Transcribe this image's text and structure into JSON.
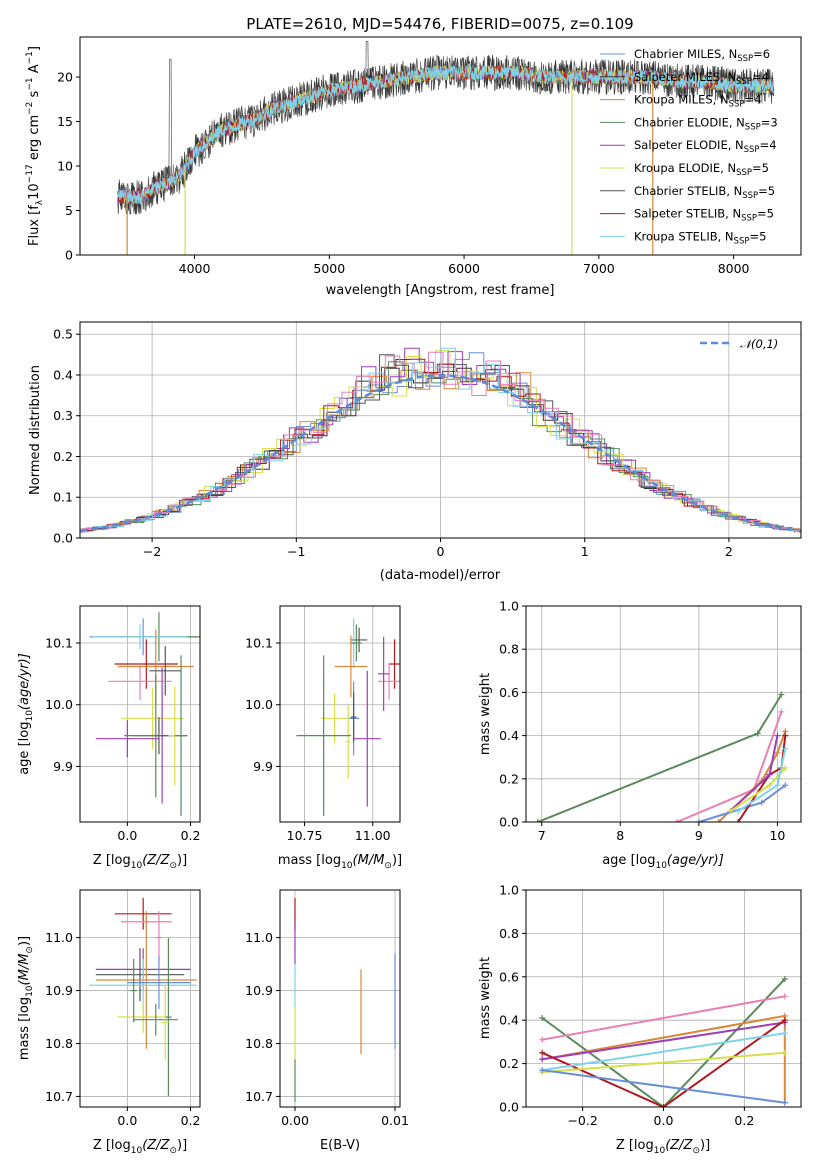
{
  "chart_data": [
    {
      "id": "spectrum",
      "type": "line",
      "title": "PLATE=2610, MJD=54476, FIBERID=0075, z=0.109",
      "xlabel": "wavelength [Angstrom, rest frame]",
      "ylabel_parts": [
        "Flux [f",
        "λ",
        "10",
        "−17",
        " erg cm",
        "−2",
        " s",
        "−1",
        " A",
        "−1",
        "]"
      ],
      "xlim": [
        3150,
        8500
      ],
      "ylim": [
        0,
        24.5
      ],
      "xticks": [
        4000,
        5000,
        6000,
        7000,
        8000
      ],
      "yticks": [
        0,
        5,
        10,
        15,
        20
      ],
      "grid": false,
      "legend_position": "top-right",
      "series": [
        {
          "name": "Chabrier MILES, N_SSP=6",
          "color": "#6a8fd8"
        },
        {
          "name": "Salpeter MILES, N_SSP=4",
          "color": "#333333"
        },
        {
          "name": "Kroupa MILES, N_SSP=4",
          "color": "#d9883a"
        },
        {
          "name": "Chabrier ELODIE, N_SSP=3",
          "color": "#5a8a5a"
        },
        {
          "name": "Salpeter ELODIE, N_SSP=4",
          "color": "#9c3fb5"
        },
        {
          "name": "Kroupa ELODIE, N_SSP=5",
          "color": "#d4e04a"
        },
        {
          "name": "Chabrier STELIB, N_SSP=5",
          "color": "#555555"
        },
        {
          "name": "Salpeter STELIB, N_SSP=5",
          "color": "#b0191e"
        },
        {
          "name": "Kroupa STELIB, N_SSP=5",
          "color": "#7fd3e8"
        }
      ],
      "legend_labels": [
        {
          "pre": "Chabrier MILES, N",
          "sub": "SSP",
          "post": "=6"
        },
        {
          "pre": "Salpeter MILES, N",
          "sub": "SSP",
          "post": "=4"
        },
        {
          "pre": "Kroupa MILES, N",
          "sub": "SSP",
          "post": "=4"
        },
        {
          "pre": "Chabrier ELODIE, N",
          "sub": "SSP",
          "post": "=3"
        },
        {
          "pre": "Salpeter ELODIE, N",
          "sub": "SSP",
          "post": "=4"
        },
        {
          "pre": "Kroupa ELODIE, N",
          "sub": "SSP",
          "post": "=5"
        },
        {
          "pre": "Chabrier STELIB, N",
          "sub": "SSP",
          "post": "=5"
        },
        {
          "pre": "Salpeter STELIB, N",
          "sub": "SSP",
          "post": "=5"
        },
        {
          "pre": "Kroupa STELIB, N",
          "sub": "SSP",
          "post": "=5"
        }
      ],
      "continuum": [
        [
          3430,
          6.5
        ],
        [
          3600,
          6.5
        ],
        [
          3700,
          7.5
        ],
        [
          3800,
          8
        ],
        [
          3900,
          9
        ],
        [
          4000,
          11.5
        ],
        [
          4200,
          14
        ],
        [
          4400,
          15
        ],
        [
          4600,
          16.5
        ],
        [
          4800,
          17.5
        ],
        [
          5000,
          18.5
        ],
        [
          5200,
          19
        ],
        [
          5400,
          19.5
        ],
        [
          5600,
          20
        ],
        [
          5800,
          20.5
        ],
        [
          6000,
          20.5
        ],
        [
          6200,
          20.5
        ],
        [
          6400,
          20.5
        ],
        [
          6600,
          20
        ],
        [
          6800,
          20
        ],
        [
          7000,
          20
        ],
        [
          7200,
          20
        ],
        [
          7400,
          20
        ],
        [
          7600,
          19.5
        ],
        [
          7800,
          19.5
        ],
        [
          8000,
          19
        ],
        [
          8200,
          19
        ],
        [
          8300,
          19
        ]
      ]
    },
    {
      "id": "residuals",
      "type": "line",
      "xlabel": "(data-model)/error",
      "ylabel": "Normed distribution",
      "xlim": [
        -2.5,
        2.5
      ],
      "ylim": [
        0,
        0.53
      ],
      "xticks": [
        -2,
        -1,
        0,
        1,
        2
      ],
      "yticks": [
        0.0,
        0.1,
        0.2,
        0.3,
        0.4,
        0.5
      ],
      "grid": true,
      "legend_position": "top-right",
      "legend_label": "𝒩(0,1)",
      "gaussian": {
        "mean": 0.0,
        "sigma": 1.0,
        "color": "#5b8bd8"
      }
    },
    {
      "id": "age-vs-Z",
      "type": "scatter",
      "xlabel_parts": [
        "Z [log",
        "10",
        "(Z/Z",
        "⊙",
        ")]"
      ],
      "ylabel_parts": [
        "age  [log",
        "10",
        "(age/yr)]"
      ],
      "xlim": [
        -0.15,
        0.23
      ],
      "ylim": [
        9.81,
        10.16
      ],
      "xticks": [
        0.0,
        0.2
      ],
      "yticks": [
        9.9,
        10.0,
        10.1
      ],
      "grid": true,
      "points": [
        {
          "color": "#6a8fd8",
          "x": 0.05,
          "y": 10.11,
          "xerr": 0.17,
          "yerr": 0.03
        },
        {
          "color": "#5a8a5a",
          "x": 0.1,
          "y": 10.11,
          "xerr": 0.13,
          "yerr": 0.04
        },
        {
          "color": "#7fd3e8",
          "x": 0.04,
          "y": 10.11,
          "xerr": 0.15,
          "yerr": 0.02
        },
        {
          "color": "#b0191e",
          "x": 0.06,
          "y": 10.066,
          "xerr": 0.1,
          "yerr": 0.04
        },
        {
          "color": "#d9883a",
          "x": 0.09,
          "y": 10.062,
          "xerr": 0.12,
          "yerr": 0.06
        },
        {
          "color": "#555555",
          "x": 0.12,
          "y": 10.055,
          "xerr": 0.05,
          "yerr": 0.04
        },
        {
          "color": "#e87fb5",
          "x": 0.04,
          "y": 10.038,
          "xerr": 0.1,
          "yerr": 0.03
        },
        {
          "color": "#d4e04a",
          "x": 0.08,
          "y": 9.978,
          "xerr": 0.1,
          "yerr": 0.05
        },
        {
          "color": "#9c3fb5",
          "x": 0.0,
          "y": 9.945,
          "xerr": 0.1,
          "yerr": 0.03
        },
        {
          "color": "#555555",
          "x": 0.1,
          "y": 9.95,
          "xerr": 0.08,
          "yerr": 0.03
        },
        {
          "color": "#5a8a5a",
          "x": 0.09,
          "y": 9.95,
          "xerr": 0.1,
          "yerr": 0.1
        },
        {
          "color": "#9c3fb5",
          "x": 0.11,
          "y": 9.95,
          "xerr": 0.02,
          "yerr": 0.11
        },
        {
          "color": "#d4e04a",
          "x": 0.15,
          "y": 9.95,
          "xerr": 0.02,
          "yerr": 0.08
        },
        {
          "color": "#5a8a5a",
          "x": 0.17,
          "y": 9.95,
          "xerr": 0.02,
          "yerr": 0.13
        }
      ]
    },
    {
      "id": "age-vs-mass",
      "type": "scatter",
      "xlabel_parts": [
        "mass [log",
        "10",
        "(M/M",
        "⊙",
        ")]"
      ],
      "xlim": [
        10.66,
        11.1
      ],
      "ylim": [
        9.81,
        10.16
      ],
      "xticks": [
        10.75,
        11.0
      ],
      "yticks": [
        9.9,
        10.0,
        10.1
      ],
      "grid": true,
      "points": [
        {
          "color": "#555555",
          "x": 10.95,
          "y": 10.105,
          "xerr": 0.03,
          "yerr": 0.02
        },
        {
          "color": "#7fd3e8",
          "x": 10.93,
          "y": 10.1,
          "xerr": 0.02,
          "yerr": 0.04
        },
        {
          "color": "#5a8a5a",
          "x": 10.94,
          "y": 10.1,
          "xerr": 0.02,
          "yerr": 0.03
        },
        {
          "color": "#b0191e",
          "x": 11.08,
          "y": 10.066,
          "xerr": 0.02,
          "yerr": 0.04
        },
        {
          "color": "#d9883a",
          "x": 10.92,
          "y": 10.062,
          "xerr": 0.06,
          "yerr": 0.05
        },
        {
          "color": "#e87fb5",
          "x": 11.06,
          "y": 10.038,
          "xerr": 0.04,
          "yerr": 0.03
        },
        {
          "color": "#9c3fb5",
          "x": 11.04,
          "y": 10.05,
          "xerr": 0.02,
          "yerr": 0.06
        },
        {
          "color": "#d4e04a",
          "x": 10.86,
          "y": 9.978,
          "xerr": 0.05,
          "yerr": 0.04
        },
        {
          "color": "#6a8fd8",
          "x": 10.93,
          "y": 9.978,
          "xerr": 0.02,
          "yerr": 0.06
        },
        {
          "color": "#555555",
          "x": 10.93,
          "y": 9.98,
          "xerr": 0.01,
          "yerr": 0.04
        },
        {
          "color": "#9c3fb5",
          "x": 10.98,
          "y": 9.945,
          "xerr": 0.05,
          "yerr": 0.11
        },
        {
          "color": "#d4e04a",
          "x": 10.91,
          "y": 9.94,
          "xerr": 0.01,
          "yerr": 0.06
        },
        {
          "color": "#5a8a5a",
          "x": 10.82,
          "y": 9.95,
          "xerr": 0.1,
          "yerr": 0.13
        }
      ]
    },
    {
      "id": "weight-vs-age",
      "type": "line",
      "xlabel_parts": [
        "age  [log",
        "10",
        "(age/yr)]"
      ],
      "ylabel": "mass weight",
      "xlim": [
        6.8,
        10.3
      ],
      "ylim": [
        0,
        1.0
      ],
      "xticks": [
        7,
        8,
        9,
        10
      ],
      "yticks": [
        0.0,
        0.2,
        0.4,
        0.6,
        0.8,
        1.0
      ],
      "grid": true,
      "series": [
        {
          "color": "#5a8a5a",
          "points": [
            [
              6.95,
              0.0
            ],
            [
              9.75,
              0.41
            ],
            [
              10.05,
              0.59
            ]
          ]
        },
        {
          "color": "#e87fb5",
          "points": [
            [
              8.72,
              0.0
            ],
            [
              9.7,
              0.15
            ],
            [
              10.05,
              0.51
            ]
          ]
        },
        {
          "color": "#d9883a",
          "points": [
            [
              9.25,
              0.0
            ],
            [
              9.8,
              0.19
            ],
            [
              10.0,
              0.32
            ],
            [
              10.1,
              0.42
            ]
          ]
        },
        {
          "color": "#6a8fd8",
          "points": [
            [
              9.0,
              0.0
            ],
            [
              9.8,
              0.09
            ],
            [
              10.1,
              0.17
            ]
          ]
        },
        {
          "color": "#b0191e",
          "points": [
            [
              9.5,
              0.0
            ],
            [
              9.9,
              0.22
            ],
            [
              10.05,
              0.25
            ],
            [
              10.1,
              0.4
            ]
          ]
        },
        {
          "color": "#9c3fb5",
          "points": [
            [
              9.4,
              0.05
            ],
            [
              9.9,
              0.22
            ],
            [
              10.0,
              0.4
            ]
          ]
        },
        {
          "color": "#d4e04a",
          "points": [
            [
              9.4,
              0.05
            ],
            [
              9.9,
              0.17
            ],
            [
              10.1,
              0.25
            ]
          ]
        },
        {
          "color": "#7fd3e8",
          "points": [
            [
              9.5,
              0.05
            ],
            [
              10.0,
              0.17
            ],
            [
              10.1,
              0.34
            ]
          ]
        }
      ]
    },
    {
      "id": "mass-vs-Z",
      "type": "scatter",
      "xlabel_parts": [
        "Z [log",
        "10",
        "(Z/Z",
        "⊙",
        ")]"
      ],
      "ylabel_parts": [
        "mass [log",
        "10",
        "(M/M",
        "⊙",
        ")]"
      ],
      "xlim": [
        -0.15,
        0.23
      ],
      "ylim": [
        10.68,
        11.09
      ],
      "xticks": [
        0.0,
        0.2
      ],
      "yticks": [
        10.7,
        10.8,
        10.9,
        11.0
      ],
      "grid": true,
      "points": [
        {
          "color": "#b0191e",
          "x": 0.05,
          "y": 11.045,
          "xerr": 0.09,
          "yerr": 0.03
        },
        {
          "color": "#e87fb5",
          "x": 0.06,
          "y": 11.03,
          "xerr": 0.08,
          "yerr": 0.01
        },
        {
          "color": "#e87fb5",
          "x": 0.1,
          "y": 11.0,
          "xerr": 0.01,
          "yerr": 0.05
        },
        {
          "color": "#9c3fb5",
          "x": 0.05,
          "y": 10.94,
          "xerr": 0.15,
          "yerr": 0.04
        },
        {
          "color": "#555555",
          "x": 0.04,
          "y": 10.93,
          "xerr": 0.14,
          "yerr": 0.05
        },
        {
          "color": "#d9883a",
          "x": 0.06,
          "y": 10.92,
          "xerr": 0.16,
          "yerr": 0.13
        },
        {
          "color": "#7fd3e8",
          "x": 0.05,
          "y": 10.91,
          "xerr": 0.17,
          "yerr": 0.05
        },
        {
          "color": "#6a8fd8",
          "x": 0.1,
          "y": 10.915,
          "xerr": 0.1,
          "yerr": 0.05
        },
        {
          "color": "#d4e04a",
          "x": 0.05,
          "y": 10.85,
          "xerr": 0.08,
          "yerr": 0.03
        },
        {
          "color": "#5a8a5a",
          "x": 0.09,
          "y": 10.845,
          "xerr": 0.07,
          "yerr": 0.03
        },
        {
          "color": "#5a8a5a",
          "x": 0.13,
          "y": 10.85,
          "xerr": 0.01,
          "yerr": 0.15
        },
        {
          "color": "#d4e04a",
          "x": 0.12,
          "y": 10.84,
          "xerr": 0.01,
          "yerr": 0.07
        },
        {
          "color": "#5a8a5a",
          "x": 0.02,
          "y": 10.9,
          "xerr": 0.01,
          "yerr": 0.06
        }
      ]
    },
    {
      "id": "mass-vs-EBV",
      "type": "scatter",
      "xlabel": "E(B-V)",
      "xlim": [
        -0.0015,
        0.0105
      ],
      "ylim": [
        10.68,
        11.09
      ],
      "xticks": [
        0.0,
        0.01
      ],
      "xtick_labels": [
        "0.00",
        "0.01"
      ],
      "yticks": [
        10.7,
        10.8,
        10.9,
        11.0
      ],
      "grid": true,
      "points": [
        {
          "color": "#b0191e",
          "x": 0.0,
          "y": 11.045,
          "yerr": 0.03
        },
        {
          "color": "#9c3fb5",
          "x": 0.0,
          "y": 10.99,
          "yerr": 0.04
        },
        {
          "color": "#7fd3e8",
          "x": 0.0,
          "y": 10.91,
          "yerr": 0.04
        },
        {
          "color": "#d4e04a",
          "x": 0.0,
          "y": 10.82,
          "yerr": 0.05
        },
        {
          "color": "#5a8a5a",
          "x": 0.0,
          "y": 10.73,
          "yerr": 0.04
        },
        {
          "color": "#d9883a",
          "x": 0.0066,
          "y": 10.86,
          "yerr": 0.08
        },
        {
          "color": "#6a8fd8",
          "x": 0.01,
          "y": 10.88,
          "yerr": 0.09
        }
      ]
    },
    {
      "id": "weight-vs-Z",
      "type": "line",
      "xlabel_parts": [
        "Z [log",
        "10",
        "(Z/Z",
        "⊙",
        ")]"
      ],
      "ylabel": "mass weight",
      "xlim": [
        -0.34,
        0.34
      ],
      "ylim": [
        0,
        1.0
      ],
      "xticks": [
        -0.2,
        0.0,
        0.2
      ],
      "xtick_labels": [
        "−0.2",
        "0.0",
        "0.2"
      ],
      "yticks": [
        0.0,
        0.2,
        0.4,
        0.6,
        0.8,
        1.0
      ],
      "grid": true,
      "series": [
        {
          "color": "#5a8a5a",
          "points": [
            [
              -0.3,
              0.41
            ],
            [
              0.0,
              0.0
            ],
            [
              0.3,
              0.59
            ]
          ]
        },
        {
          "color": "#e87fb5",
          "points": [
            [
              -0.3,
              0.31
            ],
            [
              0.3,
              0.51
            ]
          ]
        },
        {
          "color": "#d9883a",
          "points": [
            [
              -0.3,
              0.22
            ],
            [
              0.3,
              0.42
            ],
            [
              0.3,
              0.02
            ]
          ]
        },
        {
          "color": "#9c3fb5",
          "points": [
            [
              -0.3,
              0.22
            ],
            [
              0.3,
              0.39
            ]
          ]
        },
        {
          "color": "#b0191e",
          "points": [
            [
              -0.3,
              0.25
            ],
            [
              0.0,
              0.0
            ],
            [
              0.3,
              0.4
            ]
          ]
        },
        {
          "color": "#7fd3e8",
          "points": [
            [
              -0.3,
              0.17
            ],
            [
              0.3,
              0.34
            ]
          ]
        },
        {
          "color": "#d4e04a",
          "points": [
            [
              -0.3,
              0.16
            ],
            [
              0.3,
              0.25
            ]
          ]
        },
        {
          "color": "#6a8fd8",
          "points": [
            [
              -0.3,
              0.17
            ],
            [
              0.3,
              0.02
            ]
          ]
        }
      ]
    }
  ]
}
